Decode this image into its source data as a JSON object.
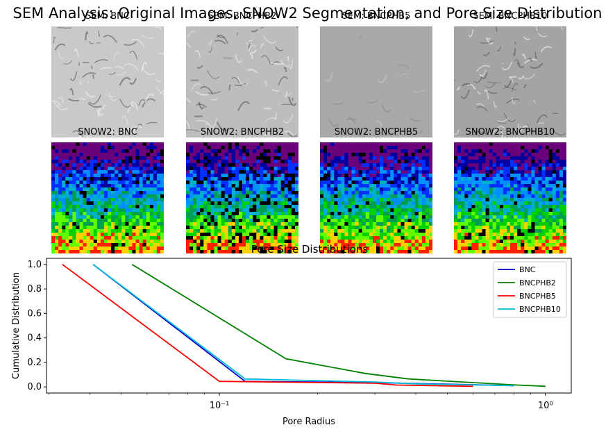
{
  "figure": {
    "title": "SEM Analysis: Original Images, SNOW2 Segmentation, and Pore Size Distribution"
  },
  "sem_panels": [
    {
      "title": "SEM: BNC",
      "tone": "#c9c9c9"
    },
    {
      "title": "SEM: BNCPHB2",
      "tone": "#bdbdbd"
    },
    {
      "title": "SEM: BNCPHB5",
      "tone": "#a9a9a9"
    },
    {
      "title": "SEM: BNCPHB10",
      "tone": "#a4a4a4"
    }
  ],
  "snow_panels": [
    {
      "title": "SNOW2: BNC"
    },
    {
      "title": "SNOW2: BNCPHB2"
    },
    {
      "title": "SNOW2: BNCPHB5"
    },
    {
      "title": "SNOW2: BNCPHB10"
    }
  ],
  "chart_data": {
    "type": "line",
    "title": "Pore Size Distributions",
    "xlabel": "Pore Radius",
    "ylabel": "Cumulative Distribution",
    "xscale": "log",
    "xlim": [
      0.0295,
      1.2
    ],
    "ylim": [
      -0.05,
      1.05
    ],
    "x_ticks": [
      {
        "value": 0.1,
        "label": "10⁻¹"
      },
      {
        "value": 1,
        "label": "10⁰"
      }
    ],
    "y_ticks": [
      "0.0",
      "0.2",
      "0.4",
      "0.6",
      "0.8",
      "1.0"
    ],
    "grid": false,
    "legend_position": "top-right",
    "series": [
      {
        "name": "BNC",
        "color": "#0000cc",
        "x": [
          0.041,
          0.12,
          0.3,
          0.8
        ],
        "y": [
          1.0,
          0.045,
          0.035,
          0.01
        ]
      },
      {
        "name": "BNCPHB2",
        "color": "#008000",
        "x": [
          0.054,
          0.16,
          0.28,
          0.38,
          0.6,
          0.82,
          1.0
        ],
        "y": [
          1.0,
          0.23,
          0.11,
          0.065,
          0.035,
          0.015,
          0.005
        ]
      },
      {
        "name": "BNCPHB5",
        "color": "#ff0000",
        "x": [
          0.033,
          0.1,
          0.3,
          0.35,
          0.6
        ],
        "y": [
          1.0,
          0.045,
          0.03,
          0.015,
          0.005
        ]
      },
      {
        "name": "BNCPHB10",
        "color": "#00bcd4",
        "x": [
          0.041,
          0.12,
          0.3,
          0.4,
          0.8
        ],
        "y": [
          1.0,
          0.065,
          0.04,
          0.025,
          0.01
        ]
      }
    ]
  }
}
